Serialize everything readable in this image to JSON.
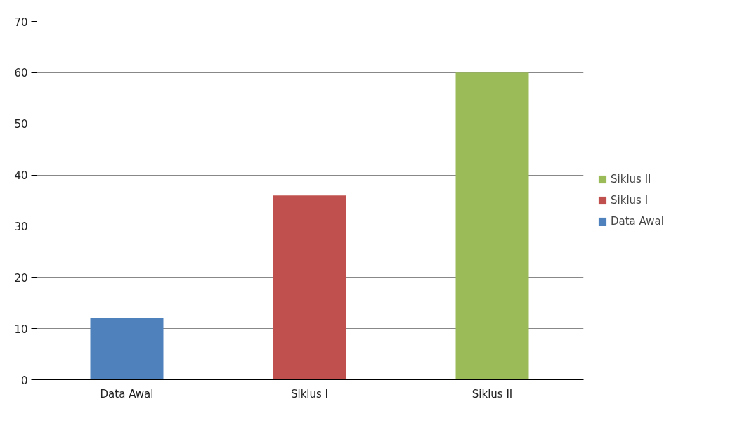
{
  "chart_data": {
    "type": "bar",
    "categories": [
      "Data Awal",
      "Siklus I",
      "Siklus II"
    ],
    "series": [
      {
        "name": "Siklus II",
        "color": "#9bbb59",
        "values": [
          null,
          null,
          60
        ]
      },
      {
        "name": "Siklus I",
        "color": "#c0504d",
        "values": [
          null,
          36,
          null
        ]
      },
      {
        "name": "Data Awal",
        "color": "#4f81bd",
        "values": [
          12,
          null,
          null
        ]
      }
    ],
    "ylim": [
      0,
      70
    ],
    "yticks": [
      0,
      10,
      20,
      30,
      40,
      50,
      60,
      70
    ],
    "grid": "y",
    "legend": "right"
  }
}
